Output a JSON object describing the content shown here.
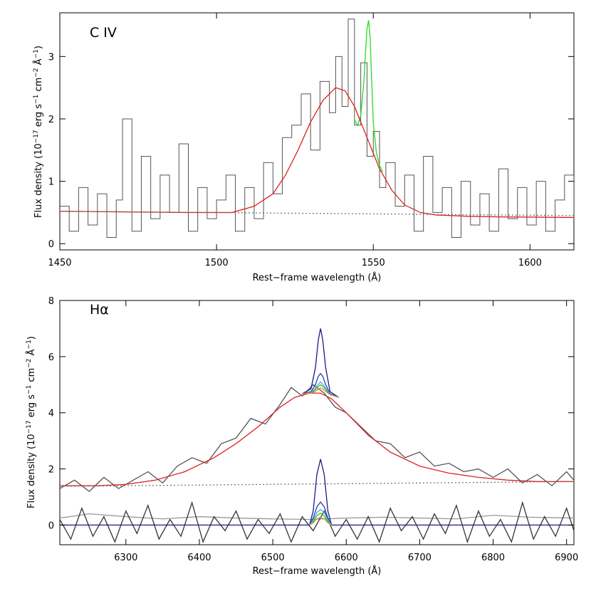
{
  "chart_data": [
    {
      "type": "line",
      "panel_label": "C IV",
      "xlabel": "Rest−frame wavelength (Å)",
      "ylabel": {
        "prefix": "Flux density (10",
        "exp1": "−17",
        "mid1": " erg s",
        "exp2": "−1",
        "mid2": " cm",
        "exp3": "−2",
        "mid3": " Å",
        "exp4": "−1",
        "suffix": ")"
      },
      "xlim": [
        1450,
        1614
      ],
      "ylim": [
        -0.1,
        3.7
      ],
      "xticks": [
        1450,
        1500,
        1550,
        1600
      ],
      "xtick_labels": [
        "1450",
        "1500",
        "1550",
        "1600"
      ],
      "yticks": [
        0,
        1,
        2,
        3
      ],
      "ytick_labels": [
        "0",
        "1",
        "2",
        "3"
      ],
      "grid": false,
      "series": [
        {
          "style": "step",
          "color": "#555555",
          "x": [
            1450,
            1453,
            1456,
            1459,
            1462,
            1465,
            1468,
            1470,
            1473,
            1476,
            1479,
            1482,
            1485,
            1488,
            1491,
            1494,
            1497,
            1500,
            1503,
            1506,
            1509,
            1512,
            1515,
            1518,
            1521,
            1524,
            1527,
            1530,
            1533,
            1536,
            1538,
            1540,
            1542,
            1544,
            1546,
            1548,
            1550,
            1552,
            1554,
            1557,
            1560,
            1563,
            1566,
            1569,
            1572,
            1575,
            1578,
            1581,
            1584,
            1587,
            1590,
            1593,
            1596,
            1599,
            1602,
            1605,
            1608,
            1611,
            1614
          ],
          "y": [
            0.6,
            0.2,
            0.9,
            0.3,
            0.8,
            0.1,
            0.7,
            2.0,
            0.2,
            1.4,
            0.4,
            1.1,
            0.5,
            1.6,
            0.2,
            0.9,
            0.4,
            0.7,
            1.1,
            0.2,
            0.9,
            0.4,
            1.3,
            0.8,
            1.7,
            1.9,
            2.4,
            1.5,
            2.6,
            2.1,
            3.0,
            2.2,
            3.6,
            1.9,
            2.9,
            1.4,
            1.8,
            0.9,
            1.3,
            0.6,
            1.1,
            0.2,
            1.4,
            0.5,
            0.9,
            0.1,
            1.0,
            0.3,
            0.8,
            0.2,
            1.2,
            0.4,
            0.9,
            0.3,
            1.0,
            0.2,
            0.7,
            1.1,
            0.4
          ]
        },
        {
          "style": "line",
          "color": "#22dd22",
          "x": [
            1544,
            1545,
            1546,
            1547,
            1547.5,
            1548,
            1548.5,
            1549,
            1549.5,
            1550,
            1551,
            1552,
            1553
          ],
          "y": [
            1.98,
            1.9,
            2.05,
            2.6,
            3.05,
            3.45,
            3.58,
            3.3,
            2.6,
            1.95,
            1.45,
            1.25,
            1.15
          ]
        },
        {
          "style": "line",
          "color": "#dd2222",
          "x": [
            1450,
            1470,
            1490,
            1505,
            1512,
            1518,
            1522,
            1526,
            1530,
            1534,
            1538,
            1541,
            1544,
            1548,
            1552,
            1556,
            1560,
            1565,
            1570,
            1580,
            1590,
            1614
          ],
          "y": [
            0.52,
            0.51,
            0.5,
            0.5,
            0.6,
            0.8,
            1.1,
            1.5,
            1.95,
            2.3,
            2.5,
            2.45,
            2.2,
            1.7,
            1.2,
            0.85,
            0.62,
            0.5,
            0.46,
            0.44,
            0.43,
            0.42
          ]
        },
        {
          "style": "dotted",
          "color": "#777777",
          "x": [
            1450,
            1614
          ],
          "y": [
            0.52,
            0.45
          ]
        }
      ]
    },
    {
      "type": "line",
      "panel_label": "Hα",
      "xlabel": "Rest−frame wavelength (Å)",
      "ylabel": {
        "prefix": "Flux density (10",
        "exp1": "−17",
        "mid1": " erg s",
        "exp2": "−1",
        "mid2": " cm",
        "exp3": "−2",
        "mid3": " Å",
        "exp4": "−1",
        "suffix": ")"
      },
      "xlim": [
        6210,
        6910
      ],
      "ylim": [
        -0.7,
        8.0
      ],
      "xticks": [
        6300,
        6400,
        6500,
        6600,
        6700,
        6800,
        6900
      ],
      "xtick_labels": [
        "6300",
        "6400",
        "6500",
        "6600",
        "6700",
        "6800",
        "6900"
      ],
      "yticks": [
        0,
        2,
        4,
        6,
        8
      ],
      "ytick_labels": [
        "0",
        "2",
        "4",
        "6",
        "8"
      ],
      "grid": false,
      "series": [
        {
          "style": "line",
          "color": "#555555",
          "x": [
            6210,
            6230,
            6250,
            6270,
            6290,
            6310,
            6330,
            6350,
            6370,
            6390,
            6410,
            6430,
            6450,
            6470,
            6490,
            6510,
            6525,
            6540,
            6555,
            6570,
            6585,
            6600,
            6620,
            6640,
            6660,
            6680,
            6700,
            6720,
            6740,
            6760,
            6780,
            6800,
            6820,
            6840,
            6860,
            6880,
            6900,
            6910
          ],
          "y": [
            1.3,
            1.6,
            1.2,
            1.7,
            1.3,
            1.6,
            1.9,
            1.5,
            2.1,
            2.4,
            2.2,
            2.9,
            3.1,
            3.8,
            3.6,
            4.3,
            4.9,
            4.6,
            5.0,
            4.7,
            4.2,
            4.0,
            3.5,
            3.0,
            2.9,
            2.4,
            2.6,
            2.1,
            2.2,
            1.9,
            2.0,
            1.7,
            2.0,
            1.5,
            1.8,
            1.4,
            1.9,
            1.6
          ]
        },
        {
          "style": "line",
          "color": "#dd2222",
          "x": [
            6210,
            6260,
            6300,
            6340,
            6380,
            6420,
            6450,
            6480,
            6510,
            6530,
            6550,
            6565,
            6580,
            6600,
            6630,
            6660,
            6700,
            6740,
            6780,
            6820,
            6860,
            6910
          ],
          "y": [
            1.4,
            1.4,
            1.45,
            1.6,
            1.9,
            2.4,
            2.9,
            3.5,
            4.2,
            4.55,
            4.7,
            4.7,
            4.5,
            4.0,
            3.2,
            2.6,
            2.1,
            1.85,
            1.7,
            1.6,
            1.55,
            1.55
          ]
        },
        {
          "style": "line",
          "color": "#1a1a8c",
          "x": [
            6540,
            6552,
            6558,
            6562,
            6565,
            6568,
            6572,
            6578,
            6590
          ],
          "y": [
            4.68,
            4.85,
            5.6,
            6.6,
            7.0,
            6.6,
            5.6,
            4.75,
            4.55
          ]
        },
        {
          "style": "line",
          "color": "#3333bb",
          "x": [
            6540,
            6552,
            6558,
            6562,
            6565,
            6568,
            6572,
            6578,
            6590
          ],
          "y": [
            4.68,
            4.75,
            5.0,
            5.3,
            5.4,
            5.3,
            5.0,
            4.68,
            4.55
          ]
        },
        {
          "style": "line",
          "color": "#33bbdd",
          "x": [
            6540,
            6552,
            6558,
            6562,
            6565,
            6568,
            6572,
            6578,
            6590
          ],
          "y": [
            4.68,
            4.72,
            4.88,
            5.02,
            5.1,
            5.02,
            4.88,
            4.66,
            4.55
          ]
        },
        {
          "style": "line",
          "color": "#33bb33",
          "x": [
            6540,
            6552,
            6558,
            6562,
            6565,
            6568,
            6572,
            6578,
            6590
          ],
          "y": [
            4.68,
            4.71,
            4.82,
            4.94,
            5.0,
            4.94,
            4.82,
            4.65,
            4.55
          ]
        },
        {
          "style": "line",
          "color": "#ee8833",
          "x": [
            6540,
            6552,
            6558,
            6562,
            6565,
            6568,
            6572,
            6578,
            6590
          ],
          "y": [
            4.68,
            4.7,
            4.76,
            4.84,
            4.88,
            4.84,
            4.76,
            4.64,
            4.55
          ]
        },
        {
          "style": "dotted",
          "color": "#777777",
          "x": [
            6210,
            6910
          ],
          "y": [
            1.38,
            1.55
          ]
        },
        {
          "style": "line",
          "color": "#999999",
          "x": [
            6210,
            6250,
            6300,
            6350,
            6400,
            6450,
            6500,
            6550,
            6600,
            6650,
            6700,
            6750,
            6800,
            6850,
            6910
          ],
          "y": [
            0.25,
            0.4,
            0.3,
            0.22,
            0.3,
            0.25,
            0.22,
            0.2,
            0.25,
            0.28,
            0.25,
            0.22,
            0.35,
            0.28,
            0.25
          ]
        },
        {
          "style": "line",
          "color": "#333333",
          "x": [
            6210,
            6225,
            6240,
            6255,
            6270,
            6285,
            6300,
            6315,
            6330,
            6345,
            6360,
            6375,
            6390,
            6405,
            6420,
            6435,
            6450,
            6465,
            6480,
            6495,
            6510,
            6525,
            6540,
            6555,
            6570,
            6585,
            6600,
            6615,
            6630,
            6645,
            6660,
            6675,
            6690,
            6705,
            6720,
            6735,
            6750,
            6765,
            6780,
            6795,
            6810,
            6825,
            6840,
            6855,
            6870,
            6885,
            6900,
            6910
          ],
          "y": [
            0.2,
            -0.5,
            0.6,
            -0.4,
            0.3,
            -0.6,
            0.5,
            -0.3,
            0.7,
            -0.5,
            0.2,
            -0.4,
            0.8,
            -0.6,
            0.3,
            -0.2,
            0.5,
            -0.5,
            0.2,
            -0.3,
            0.4,
            -0.6,
            0.3,
            -0.2,
            0.5,
            -0.4,
            0.2,
            -0.5,
            0.3,
            -0.6,
            0.6,
            -0.2,
            0.3,
            -0.5,
            0.4,
            -0.3,
            0.7,
            -0.6,
            0.5,
            -0.4,
            0.2,
            -0.6,
            0.8,
            -0.5,
            0.3,
            -0.4,
            0.6,
            -0.2
          ]
        },
        {
          "style": "line",
          "color": "#1a1a8c",
          "x": [
            6210,
            6550,
            6555,
            6560,
            6565,
            6570,
            6575,
            6580,
            6910
          ],
          "y": [
            0.0,
            0.0,
            0.5,
            1.8,
            2.35,
            1.8,
            0.5,
            0.0,
            0.0
          ]
        },
        {
          "style": "line",
          "color": "#3333bb",
          "x": [
            6550,
            6555,
            6560,
            6565,
            6570,
            6575,
            6580
          ],
          "y": [
            0.0,
            0.25,
            0.65,
            0.82,
            0.65,
            0.25,
            0.0
          ]
        },
        {
          "style": "line",
          "color": "#33bbdd",
          "x": [
            6550,
            6555,
            6560,
            6565,
            6570,
            6575,
            6580
          ],
          "y": [
            0.0,
            0.18,
            0.45,
            0.55,
            0.45,
            0.18,
            0.0
          ]
        },
        {
          "style": "line",
          "color": "#33bb33",
          "x": [
            6550,
            6555,
            6560,
            6565,
            6570,
            6575,
            6580
          ],
          "y": [
            0.0,
            0.12,
            0.33,
            0.42,
            0.33,
            0.12,
            0.0
          ]
        },
        {
          "style": "line",
          "color": "#ee8833",
          "x": [
            6550,
            6555,
            6560,
            6565,
            6570,
            6575,
            6580
          ],
          "y": [
            0.0,
            0.08,
            0.22,
            0.28,
            0.22,
            0.08,
            0.0
          ]
        }
      ]
    }
  ]
}
